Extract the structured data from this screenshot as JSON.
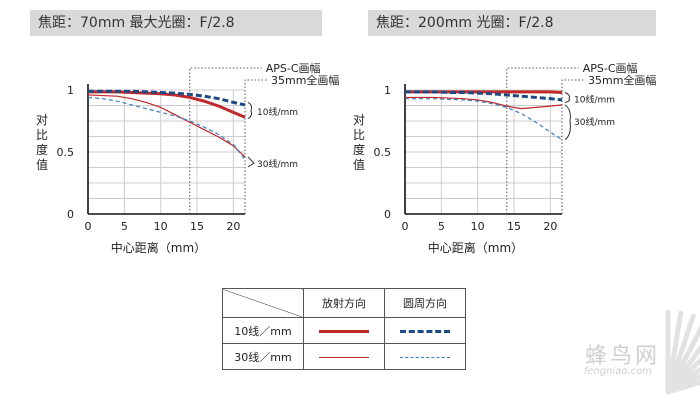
{
  "headers": {
    "left": "焦距：70mm  最大光圈：F/2.8",
    "right": "焦距：200mm  光圈：F/2.8"
  },
  "chart_data": [
    {
      "type": "line",
      "title": "焦距：70mm  最大光圈：F/2.8",
      "xlabel": "中心距离（mm）",
      "ylabel": "对比度值",
      "xlim": [
        0,
        21.6
      ],
      "ylim": [
        0,
        1
      ],
      "xticks": [
        0,
        5,
        10,
        15,
        20
      ],
      "yticks": [
        0,
        0.5,
        1
      ],
      "ytick_labels": [
        "0",
        "0.5",
        "1"
      ],
      "vlines": [
        {
          "x": 14,
          "label": "APS-C画幅"
        },
        {
          "x": 21.6,
          "label": "35mm全画幅"
        }
      ],
      "annotations": [
        "10线/mm",
        "30线/mm"
      ],
      "series": [
        {
          "name": "10线/mm 放射方向",
          "color": "#c0282a",
          "width": 3,
          "dash": "",
          "x": [
            0,
            2,
            4,
            6,
            8,
            10,
            12,
            14,
            16,
            18,
            20,
            21.6
          ],
          "y": [
            0.985,
            0.985,
            0.985,
            0.98,
            0.975,
            0.97,
            0.96,
            0.94,
            0.91,
            0.87,
            0.82,
            0.78
          ]
        },
        {
          "name": "10线/mm 圆周方向",
          "color": "#1d4a86",
          "width": 3,
          "dash": "6,3",
          "x": [
            0,
            2,
            4,
            6,
            8,
            10,
            12,
            14,
            16,
            18,
            20,
            21.6
          ],
          "y": [
            0.99,
            0.99,
            0.99,
            0.99,
            0.985,
            0.98,
            0.975,
            0.965,
            0.95,
            0.93,
            0.9,
            0.88
          ]
        },
        {
          "name": "30线/mm 放射方向",
          "color": "#c0282a",
          "width": 1.2,
          "dash": "",
          "x": [
            0,
            2,
            4,
            6,
            8,
            10,
            12,
            14,
            16,
            18,
            20,
            21.6
          ],
          "y": [
            0.96,
            0.955,
            0.95,
            0.93,
            0.9,
            0.86,
            0.8,
            0.74,
            0.68,
            0.62,
            0.55,
            0.46
          ]
        },
        {
          "name": "30线/mm 圆周方向",
          "color": "#3a7fc0",
          "width": 1.2,
          "dash": "4,3",
          "x": [
            0,
            2,
            4,
            6,
            8,
            10,
            12,
            14,
            16,
            18,
            20,
            21.6
          ],
          "y": [
            0.94,
            0.93,
            0.91,
            0.88,
            0.85,
            0.82,
            0.79,
            0.75,
            0.7,
            0.64,
            0.56,
            0.44
          ]
        }
      ]
    },
    {
      "type": "line",
      "title": "焦距：200mm  光圈：F/2.8",
      "xlabel": "中心距离（mm）",
      "ylabel": "对比度值",
      "xlim": [
        0,
        21.6
      ],
      "ylim": [
        0,
        1
      ],
      "xticks": [
        0,
        5,
        10,
        15,
        20
      ],
      "yticks": [
        0,
        0.5,
        1
      ],
      "ytick_labels": [
        "0",
        "0.5",
        "1"
      ],
      "vlines": [
        {
          "x": 14,
          "label": "APS-C画幅"
        },
        {
          "x": 21.6,
          "label": "35mm全画幅"
        }
      ],
      "annotations": [
        "10线/mm",
        "30线/mm"
      ],
      "series": [
        {
          "name": "10线/mm 放射方向",
          "color": "#c0282a",
          "width": 3,
          "dash": "",
          "x": [
            0,
            2,
            4,
            6,
            8,
            10,
            12,
            14,
            16,
            18,
            20,
            21.6
          ],
          "y": [
            0.985,
            0.985,
            0.985,
            0.985,
            0.985,
            0.985,
            0.985,
            0.985,
            0.985,
            0.985,
            0.985,
            0.98
          ]
        },
        {
          "name": "10线/mm 圆周方向",
          "color": "#1d4a86",
          "width": 3,
          "dash": "6,3",
          "x": [
            0,
            2,
            4,
            6,
            8,
            10,
            12,
            14,
            16,
            18,
            20,
            21.6
          ],
          "y": [
            0.985,
            0.985,
            0.985,
            0.98,
            0.98,
            0.975,
            0.97,
            0.96,
            0.95,
            0.94,
            0.93,
            0.92
          ]
        },
        {
          "name": "30线/mm 放射方向",
          "color": "#c0282a",
          "width": 1.2,
          "dash": "",
          "x": [
            0,
            2,
            4,
            6,
            8,
            10,
            12,
            14,
            16,
            18,
            20,
            21.6
          ],
          "y": [
            0.94,
            0.94,
            0.94,
            0.935,
            0.93,
            0.92,
            0.9,
            0.87,
            0.85,
            0.86,
            0.87,
            0.88
          ]
        },
        {
          "name": "30线/mm 圆周方向",
          "color": "#3a7fc0",
          "width": 1.2,
          "dash": "4,3",
          "x": [
            0,
            2,
            4,
            6,
            8,
            10,
            12,
            14,
            16,
            18,
            20,
            21.6
          ],
          "y": [
            0.93,
            0.93,
            0.93,
            0.925,
            0.92,
            0.91,
            0.89,
            0.86,
            0.81,
            0.74,
            0.66,
            0.6
          ]
        }
      ]
    }
  ],
  "legend": {
    "col_radial": "放射方向",
    "col_sagittal": "圆周方向",
    "row_10": "10线／mm",
    "row_30": "30线／mm"
  },
  "watermark": {
    "cn": "蜂鸟网",
    "en": "fengniao.com"
  },
  "colors": {
    "radial": "#c0282a",
    "sagittal_bold": "#1d4a86",
    "sagittal_thin": "#3a7fc0",
    "grid": "#cccccc",
    "header_bg": "#d9d9d9"
  }
}
